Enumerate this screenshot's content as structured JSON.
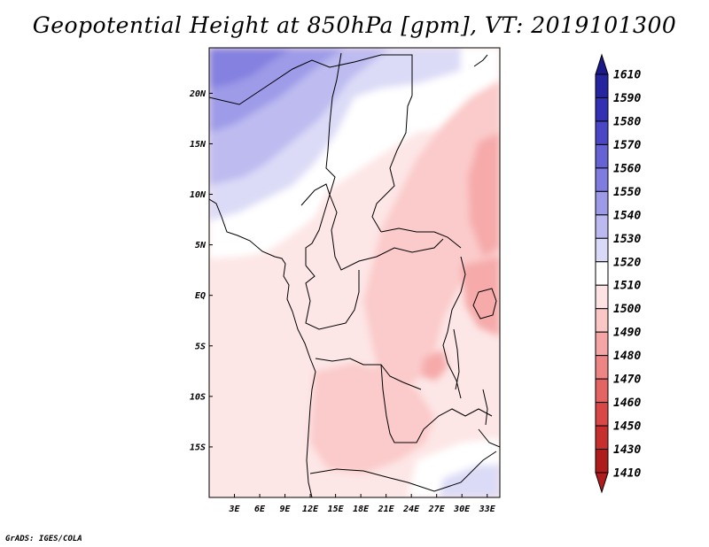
{
  "title": "Geopotential Height at 850hPa [gpm], VT: 2019101300",
  "credit": "GrADS: IGES/COLA",
  "map": {
    "lat_ticks": [
      "20N",
      "15N",
      "10N",
      "5N",
      "EQ",
      "5S",
      "10S",
      "15S"
    ],
    "lat_values": [
      20,
      15,
      10,
      5,
      0,
      -5,
      -10,
      -15
    ],
    "lon_ticks": [
      "3E",
      "6E",
      "9E",
      "12E",
      "15E",
      "18E",
      "21E",
      "24E",
      "27E",
      "30E",
      "33E"
    ],
    "lon_values": [
      3,
      6,
      9,
      12,
      15,
      18,
      21,
      24,
      27,
      30,
      33
    ],
    "lon_range": [
      0,
      34.5
    ],
    "lat_range": [
      -20,
      24.5
    ]
  },
  "colorbar": {
    "levels": [
      "1610",
      "1590",
      "1580",
      "1570",
      "1560",
      "1550",
      "1540",
      "1530",
      "1520",
      "1510",
      "1500",
      "1490",
      "1480",
      "1470",
      "1460",
      "1450",
      "1430",
      "1410"
    ],
    "colors": [
      "#1c1a8a",
      "#26249e",
      "#3330b3",
      "#4a46c6",
      "#6562d3",
      "#7f7cdf",
      "#9d9ae8",
      "#bbb9f0",
      "#dad9f7",
      "#ffffff",
      "#fde3e3",
      "#fbc6c6",
      "#f5a5a5",
      "#ee8585",
      "#e46464",
      "#d94747",
      "#c72f2f",
      "#b01c1c"
    ]
  }
}
